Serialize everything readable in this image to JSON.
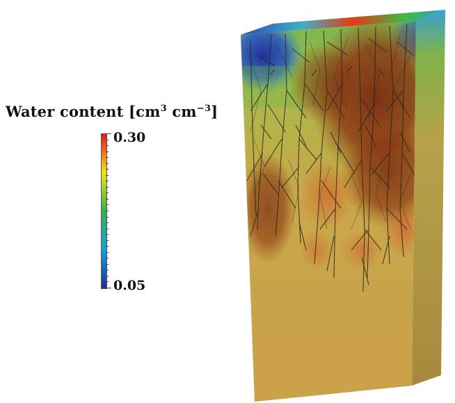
{
  "legend": {
    "title": "Water content",
    "unit_open": "[cm",
    "unit_exp1": "3",
    "unit_mid": " cm",
    "unit_exp2": "−3",
    "unit_close": "]",
    "max_label": "0.30",
    "min_label": "0.05",
    "max_value": 0.3,
    "min_value": 0.05,
    "colormap": [
      "#1a2f9a",
      "#1aa0d8",
      "#36b24a",
      "#f2e21a",
      "#e8161a"
    ]
  },
  "scene": {
    "description_free": true,
    "front_base_color": "#c9a64a",
    "side_color": "#a58a3c",
    "root_color": "#2b2a1e",
    "dry_color": "#7a2a10"
  }
}
